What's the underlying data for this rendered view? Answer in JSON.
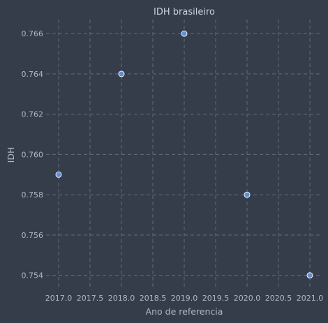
{
  "chart_data": {
    "type": "scatter",
    "title": "IDH brasileiro",
    "xlabel": "Ano de referencia",
    "ylabel": "IDH",
    "x": [
      2017,
      2018,
      2019,
      2020,
      2021
    ],
    "y": [
      0.759,
      0.764,
      0.766,
      0.758,
      0.754
    ],
    "xlim": [
      2016.8,
      2021.2
    ],
    "ylim": [
      0.7534,
      0.7667
    ],
    "xticks": [
      2017.0,
      2017.5,
      2018.0,
      2018.5,
      2019.0,
      2019.5,
      2020.0,
      2020.5,
      2021.0
    ],
    "xtick_labels": [
      "2017.0",
      "2017.5",
      "2018.0",
      "2018.5",
      "2019.0",
      "2019.5",
      "2020.0",
      "2020.5",
      "2021.0"
    ],
    "yticks": [
      0.754,
      0.756,
      0.758,
      0.76,
      0.762,
      0.764,
      0.766
    ],
    "ytick_labels": [
      "0.754",
      "0.756",
      "0.758",
      "0.760",
      "0.762",
      "0.764",
      "0.766"
    ],
    "grid": true,
    "colors": {
      "background": "#353d4a",
      "point": "#5f8fd6",
      "grid": "#5c6778"
    }
  }
}
